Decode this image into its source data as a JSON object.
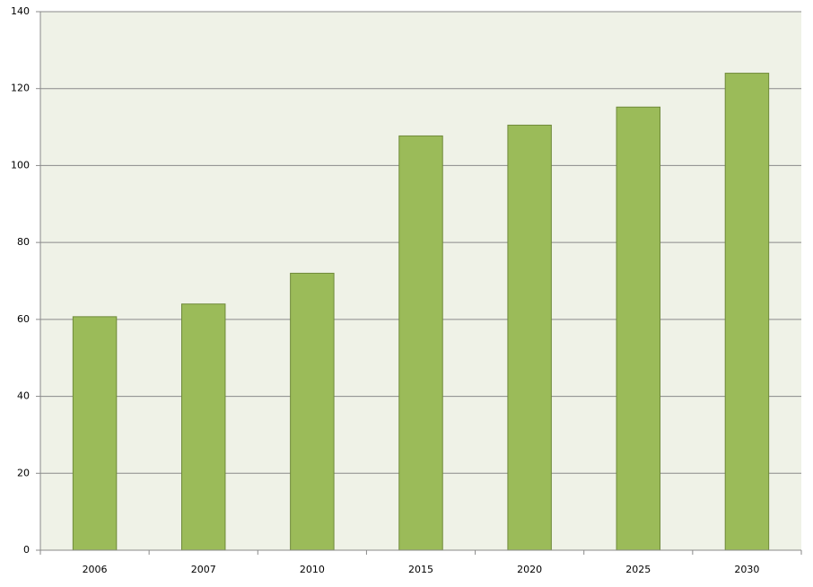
{
  "chart_data": {
    "type": "bar",
    "categories": [
      "2006",
      "2007",
      "2010",
      "2015",
      "2020",
      "2025",
      "2030"
    ],
    "values": [
      60.7,
      64,
      72,
      107.7,
      110.5,
      115.2,
      124
    ],
    "color": "#9bbb59",
    "ylim": [
      0,
      140
    ],
    "yticks": [
      0,
      20,
      40,
      60,
      80,
      100,
      120,
      140
    ],
    "grid": true
  }
}
